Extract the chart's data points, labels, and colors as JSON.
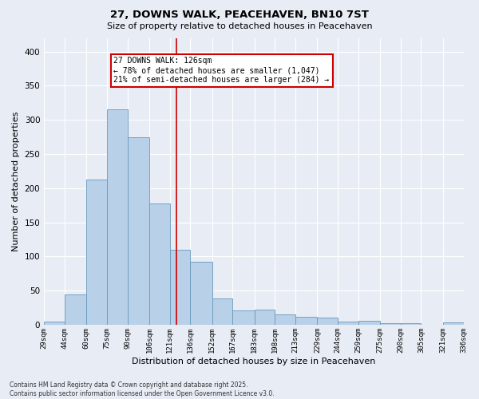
{
  "title1": "27, DOWNS WALK, PEACEHAVEN, BN10 7ST",
  "title2": "Size of property relative to detached houses in Peacehaven",
  "xlabel": "Distribution of detached houses by size in Peacehaven",
  "ylabel": "Number of detached properties",
  "bins": [
    29,
    44,
    60,
    75,
    90,
    106,
    121,
    136,
    152,
    167,
    183,
    198,
    213,
    229,
    244,
    259,
    275,
    290,
    305,
    321,
    336
  ],
  "heights": [
    5,
    44,
    212,
    315,
    275,
    178,
    110,
    92,
    38,
    21,
    22,
    15,
    12,
    10,
    4,
    6,
    2,
    2,
    0,
    3
  ],
  "bar_color": "#b8d0e8",
  "bar_edge_color": "#6699bb",
  "vline_x": 126,
  "vline_color": "#cc0000",
  "annotation_text": "27 DOWNS WALK: 126sqm\n← 78% of detached houses are smaller (1,047)\n21% of semi-detached houses are larger (284) →",
  "annotation_box_facecolor": "#ffffff",
  "annotation_box_edgecolor": "#cc0000",
  "background_color": "#e8edf5",
  "grid_color": "#ffffff",
  "ylim": [
    0,
    420
  ],
  "yticks": [
    0,
    50,
    100,
    150,
    200,
    250,
    300,
    350,
    400
  ],
  "footnote": "Contains HM Land Registry data © Crown copyright and database right 2025.\nContains public sector information licensed under the Open Government Licence v3.0."
}
